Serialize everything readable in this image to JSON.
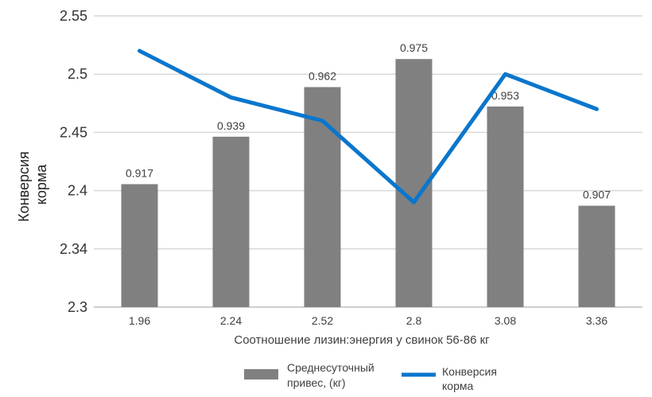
{
  "chart_data": {
    "type": "bar+line",
    "categories": [
      "1.96",
      "2.24",
      "2.52",
      "2.8",
      "3.08",
      "3.36"
    ],
    "series": [
      {
        "name": "Среднесуточный привес, (кг)",
        "type": "bar",
        "values": [
          0.917,
          0.939,
          0.962,
          0.975,
          0.953,
          0.907
        ],
        "data_labels": [
          "0.917",
          "0.939",
          "0.962",
          "0.975",
          "0.953",
          "0.907"
        ],
        "color": "#808080"
      },
      {
        "name": "Конверсия корма",
        "type": "line",
        "values": [
          2.52,
          2.48,
          2.46,
          2.39,
          2.5,
          2.47
        ],
        "color": "#0a76cc"
      }
    ],
    "yticks": [
      "2.3",
      "2.34",
      "2.4",
      "2.45",
      "2.5",
      "2.55"
    ],
    "ylim": [
      2.3,
      2.55
    ],
    "xlabel": "Соотношение лизин:энергия у свинок 56-86 кг",
    "ylabel_lines": [
      "Конверсия",
      "корма"
    ],
    "legend": {
      "position": "bottom",
      "items": [
        {
          "lines": [
            "Среднесуточный",
            "привес, (кг)"
          ],
          "color": "#808080",
          "type": "bar"
        },
        {
          "lines": [
            "Конверсия",
            "корма"
          ],
          "color": "#0a76cc",
          "type": "line"
        }
      ]
    },
    "grid": true
  }
}
